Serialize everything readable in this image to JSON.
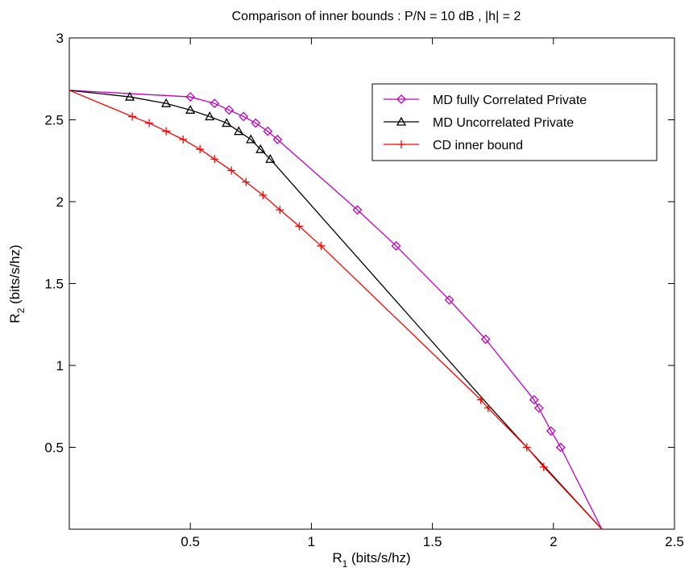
{
  "chart_data": {
    "type": "line",
    "title": "Comparison of inner bounds : P/N = 10 dB , |h| = 2",
    "xlabel": {
      "main": "R",
      "sub": "1",
      "rest": " (bits/s/hz)"
    },
    "ylabel": {
      "main": "R",
      "sub": "2",
      "rest": " (bits/s/hz)"
    },
    "xlim": [
      0,
      2.5
    ],
    "ylim": [
      0,
      3
    ],
    "xticks": [
      0.5,
      1,
      1.5,
      2,
      2.5
    ],
    "xtick_labels": [
      "0.5",
      "1",
      "1.5",
      "2",
      "2.5"
    ],
    "yticks": [
      0.5,
      1,
      1.5,
      2,
      2.5,
      3
    ],
    "ytick_labels": [
      "0.5",
      "1",
      "1.5",
      "2",
      "2.5",
      "3"
    ],
    "grid": false,
    "legend_position": "top-right",
    "series": [
      {
        "name": "MD fully Correlated Private",
        "color": "#bf00bf",
        "marker": "diamond",
        "x": [
          0,
          0.5,
          0.6,
          0.66,
          0.72,
          0.77,
          0.82,
          0.86,
          1.19,
          1.35,
          1.57,
          1.72,
          1.92,
          1.94,
          1.99,
          2.03,
          2.2
        ],
        "y": [
          2.68,
          2.64,
          2.6,
          2.56,
          2.52,
          2.48,
          2.43,
          2.38,
          1.95,
          1.73,
          1.4,
          1.16,
          0.79,
          0.74,
          0.6,
          0.5,
          0
        ],
        "marker_idx": [
          1,
          2,
          3,
          4,
          5,
          6,
          7,
          8,
          9,
          10,
          11,
          12,
          13,
          14,
          15
        ]
      },
      {
        "name": "MD Uncorrelated Private",
        "color": "#000000",
        "marker": "triangle",
        "x": [
          0,
          0.25,
          0.4,
          0.5,
          0.58,
          0.65,
          0.7,
          0.75,
          0.79,
          0.83,
          1.73,
          1.89,
          2.2
        ],
        "y": [
          2.68,
          2.64,
          2.6,
          2.56,
          2.52,
          2.48,
          2.43,
          2.38,
          2.32,
          2.26,
          0.76,
          0.5,
          0
        ],
        "marker_idx": [
          1,
          2,
          3,
          4,
          5,
          6,
          7,
          8,
          9
        ]
      },
      {
        "name": "CD inner bound",
        "color": "#ff0000",
        "marker": "plus",
        "x": [
          0,
          0.26,
          0.33,
          0.4,
          0.47,
          0.54,
          0.6,
          0.67,
          0.73,
          0.8,
          0.87,
          0.95,
          1.04,
          1.7,
          1.73,
          1.89,
          1.96,
          2.2
        ],
        "y": [
          2.68,
          2.52,
          2.48,
          2.43,
          2.38,
          2.32,
          2.26,
          2.19,
          2.12,
          2.04,
          1.95,
          1.85,
          1.73,
          0.79,
          0.74,
          0.5,
          0.38,
          0
        ],
        "marker_idx": [
          1,
          2,
          3,
          4,
          5,
          6,
          7,
          8,
          9,
          10,
          11,
          12,
          13,
          14,
          15,
          16
        ]
      }
    ]
  }
}
